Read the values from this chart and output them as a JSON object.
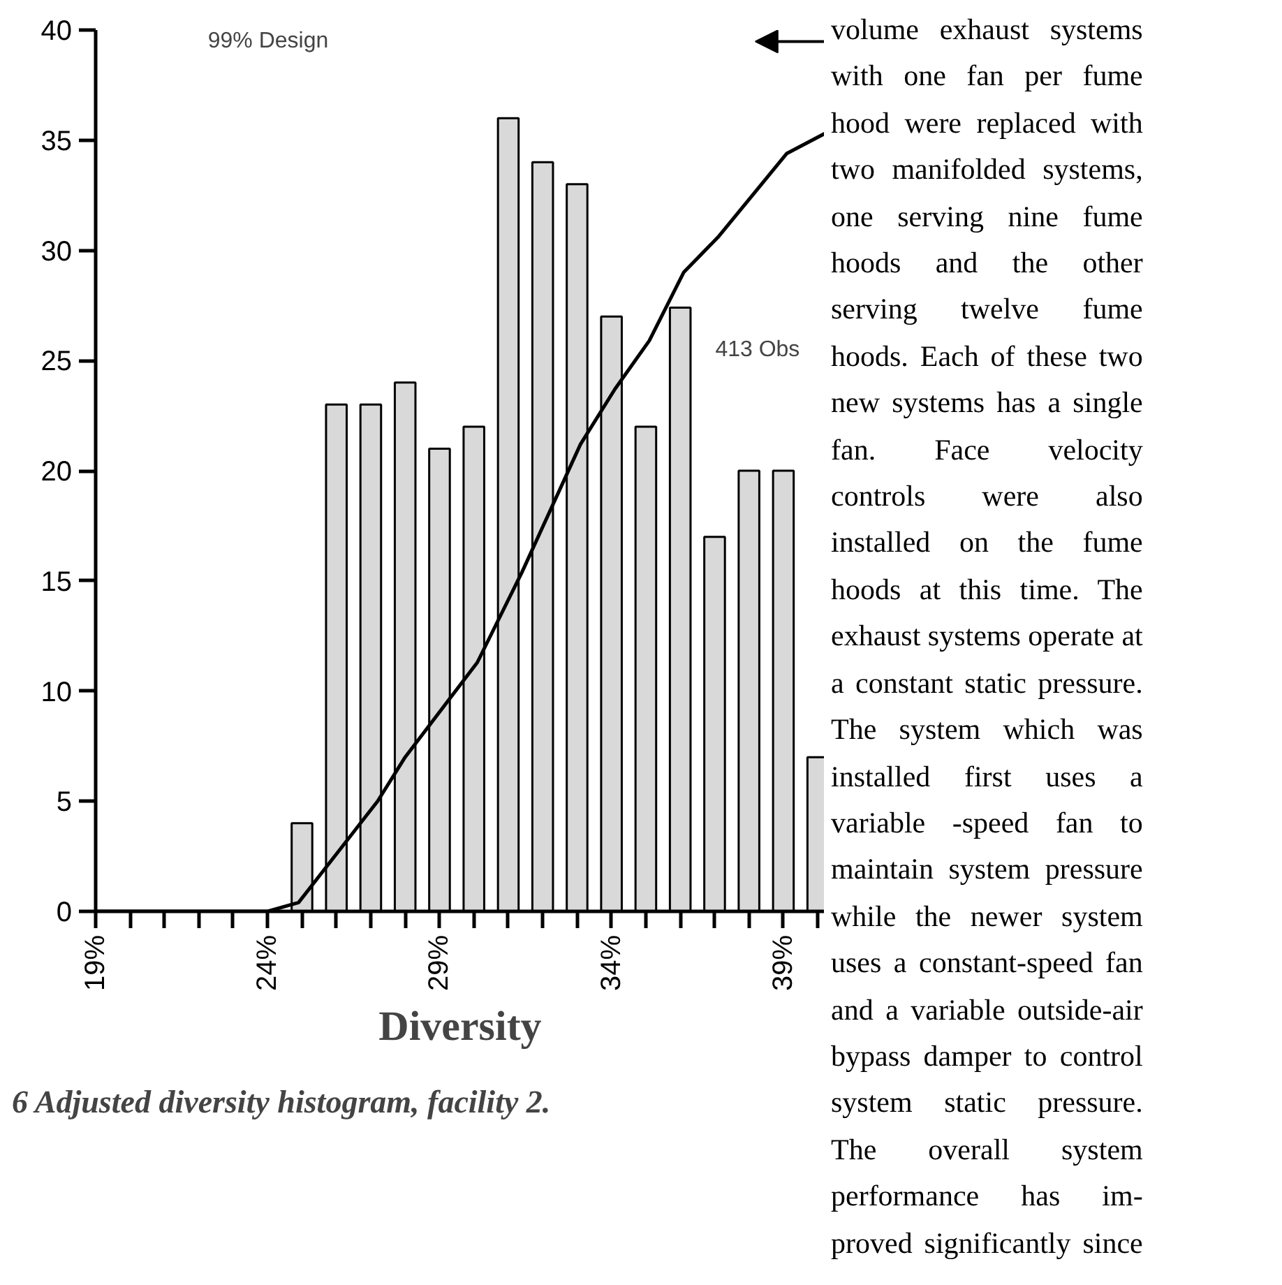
{
  "chart_data": {
    "type": "histogram",
    "title": "6    Adjusted diversity histogram, facility 2.",
    "xlabel": "Diversity",
    "bins": [
      24.5,
      25.5,
      26.5,
      27.5,
      28.5,
      29.5,
      30.5,
      31.5,
      32.5,
      33.5,
      34.5,
      35.5,
      36.5,
      37.5,
      38.5,
      39.5,
      40.5
    ],
    "values": [
      4,
      23,
      23,
      24,
      21,
      22,
      36,
      34,
      33,
      27,
      22,
      27.4,
      17,
      20,
      20,
      7
    ],
    "color": "#d9d9d9",
    "series": [
      {
        "type": "line",
        "color": "#000000",
        "x": [
          19,
          24,
          24.9,
          27.2,
          28.0,
          30.1,
          31.4,
          33.1,
          34.1,
          35.1,
          36.1,
          37.1,
          39.1,
          40.2
        ],
        "values": [
          0,
          0,
          0.4,
          5.0,
          7.0,
          11.3,
          15.4,
          21.2,
          23.7,
          25.9,
          29.0,
          30.6,
          34.4,
          35.3
        ]
      }
    ],
    "xlim": [
      19,
      40.2
    ],
    "xticks": [
      {
        "value": 19,
        "label": "19%"
      },
      {
        "value": 20,
        "label": null
      },
      {
        "value": 21,
        "label": null
      },
      {
        "value": 22,
        "label": null
      },
      {
        "value": 23,
        "label": null
      },
      {
        "value": 24,
        "label": "24%"
      },
      {
        "value": 25,
        "label": null
      },
      {
        "value": 26,
        "label": null
      },
      {
        "value": 27,
        "label": null
      },
      {
        "value": 28,
        "label": null
      },
      {
        "value": 29,
        "label": "29%"
      },
      {
        "value": 30,
        "label": null
      },
      {
        "value": 31,
        "label": null
      },
      {
        "value": 32,
        "label": null
      },
      {
        "value": 33,
        "label": null
      },
      {
        "value": 34,
        "label": "34%"
      },
      {
        "value": 35,
        "label": null
      },
      {
        "value": 36,
        "label": null
      },
      {
        "value": 37,
        "label": null
      },
      {
        "value": 38,
        "label": null
      },
      {
        "value": 39,
        "label": "39%"
      },
      {
        "value": 40,
        "label": null
      }
    ],
    "ylim": [
      0,
      40
    ],
    "yticks": [
      0,
      5,
      10,
      15,
      20,
      25,
      30,
      35,
      40
    ],
    "annotations": [
      "99% Design",
      "413 Obs",
      "volume exhaust systems\nwith one fan per fume\nhood were replaced with\ntwo manifolded systems,\none serving nine fume\nhoods and the other\nserving twelve fume\nhoods.  Each of these two\nnew systems has a single\nfan.  Face velocity\ncontrols were also\ninstalled on the fume\nhoods at this time.  The\nexhaust systems operate at\na constant static pressure.\nThe system which was\ninstalled first uses a\nvariable -speed fan to\nmaintain system pressure\nwhile the newer system\nuses a constant-speed fan\nand a variable outside-air\nbypass damper to control\nsystem static pressure.\nThe overall system\nperformance has im-\nproved significantly since"
    ]
  }
}
